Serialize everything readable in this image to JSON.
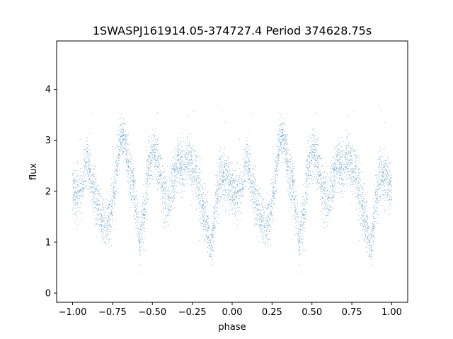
{
  "chart_data": {
    "type": "scatter",
    "title": "1SWASPJ161914.05-374727.4 Period 374628.75s",
    "xlabel": "phase",
    "ylabel": "flux",
    "xlim": [
      -1.1,
      1.1
    ],
    "ylim": [
      -0.18,
      4.95
    ],
    "x_ticks": [
      -1.0,
      -0.75,
      -0.5,
      -0.25,
      0.0,
      0.25,
      0.5,
      0.75,
      1.0
    ],
    "x_tick_labels": [
      "−1.00",
      "−0.75",
      "−0.50",
      "−0.25",
      "0.00",
      "0.25",
      "0.50",
      "0.75",
      "1.00"
    ],
    "y_ticks": [
      0,
      1,
      2,
      3,
      4
    ],
    "y_tick_labels": [
      "0",
      "1",
      "2",
      "3",
      "4"
    ],
    "grid": false,
    "legend": "none",
    "point_color": "#1f77b4",
    "profile_x": [
      0.0,
      0.03,
      0.06,
      0.09,
      0.12,
      0.15,
      0.18,
      0.21,
      0.24,
      0.27,
      0.3,
      0.33,
      0.36,
      0.39,
      0.42,
      0.45,
      0.48,
      0.51,
      0.54,
      0.57,
      0.6,
      0.63,
      0.66,
      0.69,
      0.72,
      0.75,
      0.78,
      0.81,
      0.84,
      0.87,
      0.9,
      0.93,
      0.96,
      1.0
    ],
    "profile_y": [
      2.1,
      1.9,
      2.0,
      2.7,
      2.1,
      1.8,
      1.5,
      1.3,
      1.5,
      2.2,
      3.1,
      3.0,
      2.3,
      2.0,
      1.0,
      1.6,
      2.6,
      2.8,
      2.5,
      2.0,
      1.8,
      2.2,
      2.6,
      2.4,
      2.7,
      2.5,
      2.3,
      1.7,
      1.4,
      0.9,
      1.8,
      2.4,
      2.2,
      2.1
    ],
    "profile_spread": [
      0.45,
      0.45,
      0.4,
      0.45,
      0.45,
      0.4,
      0.4,
      0.4,
      0.45,
      0.45,
      0.35,
      0.4,
      0.45,
      0.45,
      0.35,
      0.45,
      0.4,
      0.4,
      0.4,
      0.45,
      0.45,
      0.4,
      0.35,
      0.4,
      0.35,
      0.4,
      0.45,
      0.45,
      0.4,
      0.35,
      0.45,
      0.45,
      0.45,
      0.45
    ],
    "n_points_per_half": 3200
  }
}
